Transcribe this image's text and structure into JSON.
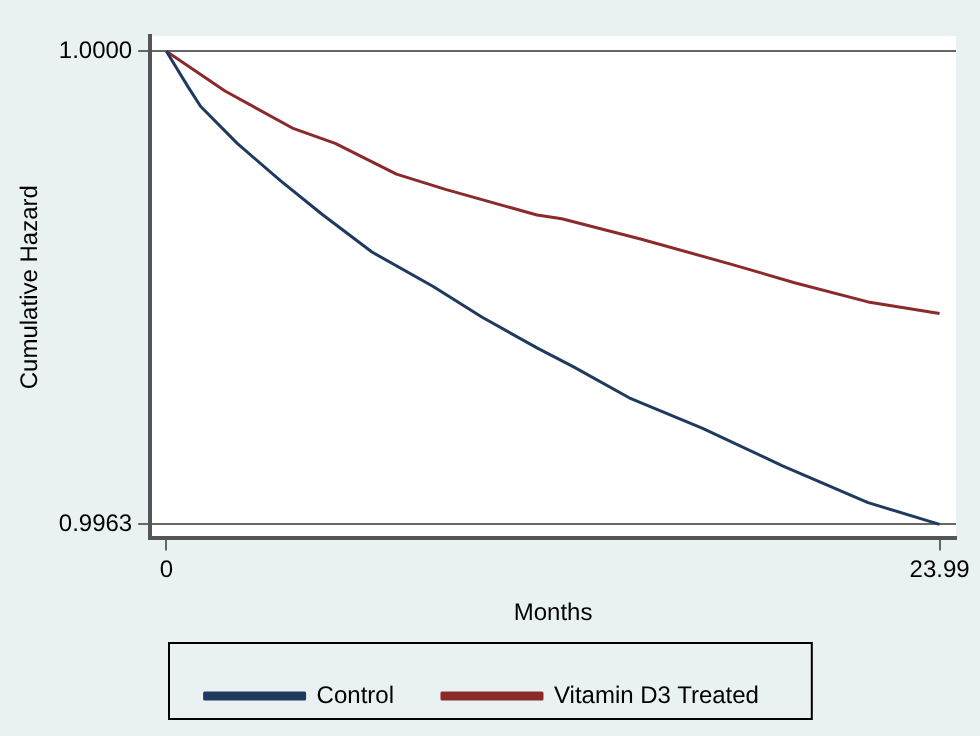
{
  "chart_data": {
    "type": "line",
    "xlabel": "Months",
    "ylabel": "Cumulative Hazard",
    "xlim": [
      -0.5,
      24.5
    ],
    "ylim": [
      0.99619,
      1.00012
    ],
    "xticks": [
      0,
      23.99
    ],
    "yticks": [
      {
        "value": 1,
        "label": "1.0000"
      },
      0.9963
    ],
    "grid": "y",
    "legend": "bottom",
    "marker": "none",
    "line_style": "solid",
    "series": [
      {
        "name": "Control",
        "color": "#1f3a5f",
        "x": [
          0,
          0.68,
          1.06,
          2.2,
          3.53,
          4.86,
          6.38,
          8.28,
          9.8,
          11.5,
          12.65,
          14.36,
          16.64,
          19.1,
          21.77,
          23.99
        ],
        "values": [
          1,
          0.99972,
          0.99957,
          0.99928,
          0.99899,
          0.99872,
          0.99843,
          0.99816,
          0.99792,
          0.99768,
          0.99753,
          0.99729,
          0.99705,
          0.99676,
          0.99647,
          0.9963
        ]
      },
      {
        "name": "Vitamin D3 Treated",
        "color": "#8b2a2a",
        "x": [
          0,
          1.82,
          3.91,
          5.24,
          7.14,
          8.66,
          11.5,
          12.27,
          14.74,
          17.59,
          19.49,
          21.77,
          23.99
        ],
        "values": [
          1,
          0.99969,
          0.9994,
          0.99928,
          0.99904,
          0.99892,
          0.99872,
          0.99869,
          0.99853,
          0.99833,
          0.99819,
          0.99804,
          0.99795
        ]
      }
    ]
  }
}
